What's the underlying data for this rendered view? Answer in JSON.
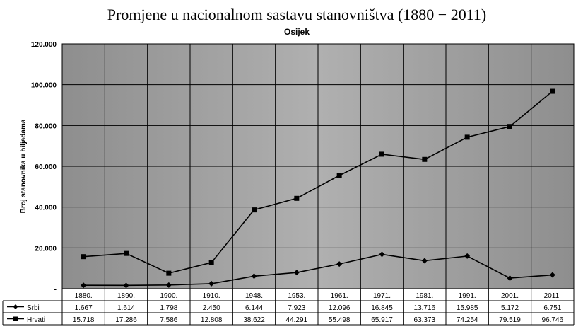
{
  "chart_data": {
    "type": "line",
    "title": "Promjene u nacionalnom sastavu stanovništva (1880 − 2011)",
    "subtitle": "Osijek",
    "ylabel": "Broj stanovnika u hiljadama",
    "ylim": [
      0,
      120000
    ],
    "yticks": [
      "-",
      "20.000",
      "40.000",
      "60.000",
      "80.000",
      "100.000",
      "120.000"
    ],
    "ytick_values": [
      0,
      20000,
      40000,
      60000,
      80000,
      100000,
      120000
    ],
    "categories": [
      "1880.",
      "1890.",
      "1900.",
      "1910.",
      "1948.",
      "1953.",
      "1961.",
      "1971.",
      "1981.",
      "1991.",
      "2001.",
      "2011."
    ],
    "grid": true,
    "legend_placement": "data-table-below",
    "series": [
      {
        "name": "Srbi",
        "marker": "diamond",
        "values": [
          1667,
          1614,
          1798,
          2450,
          6144,
          7923,
          12096,
          16845,
          13716,
          15985,
          5172,
          6751
        ],
        "labels": [
          "1.667",
          "1.614",
          "1.798",
          "2.450",
          "6.144",
          "7.923",
          "12.096",
          "16.845",
          "13.716",
          "15.985",
          "5.172",
          "6.751"
        ]
      },
      {
        "name": "Hrvati",
        "marker": "square",
        "values": [
          15718,
          17286,
          7586,
          12808,
          38622,
          44291,
          55498,
          65917,
          63373,
          74254,
          79519,
          96746
        ],
        "labels": [
          "15.718",
          "17.286",
          "7.586",
          "12.808",
          "38.622",
          "44.291",
          "55.498",
          "65.917",
          "63.373",
          "74.254",
          "79.519",
          "96.746"
        ]
      }
    ],
    "colors": {
      "plot_bg": "#9c9c9c",
      "grid": "#000000",
      "line": "#000000"
    }
  }
}
